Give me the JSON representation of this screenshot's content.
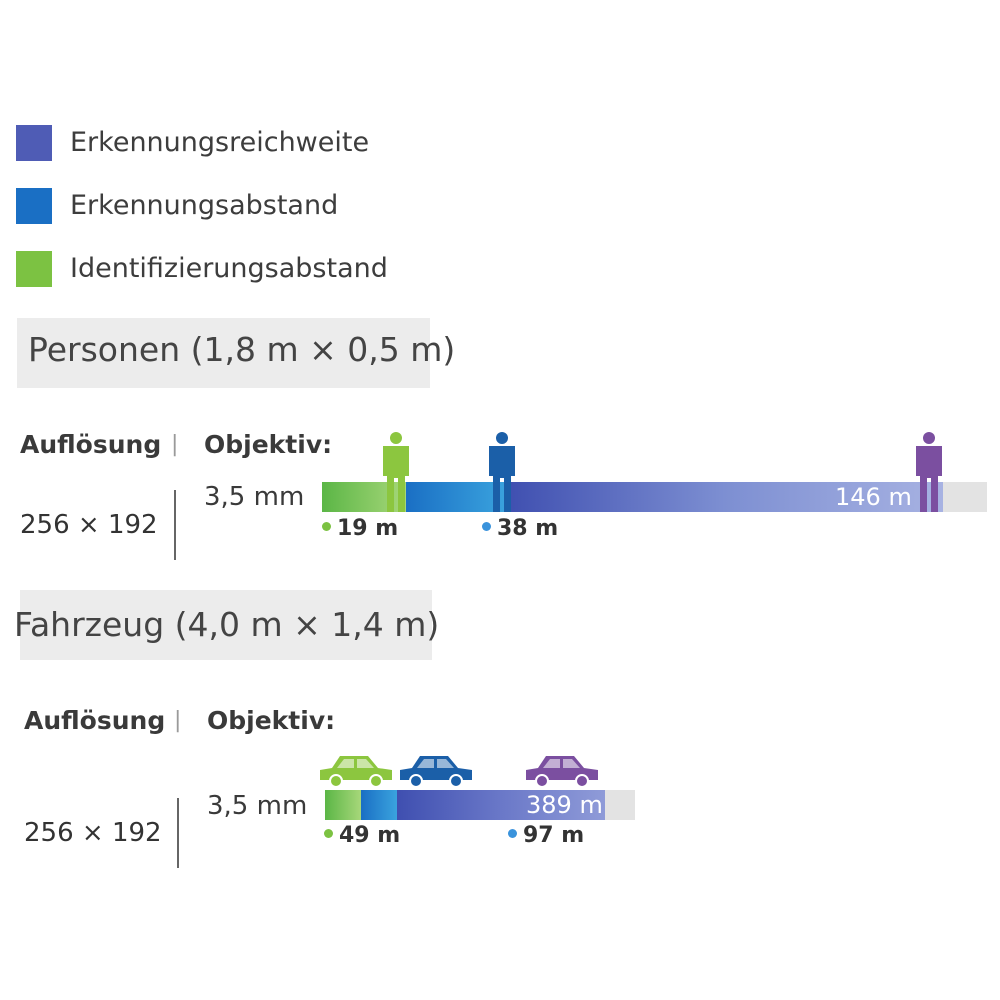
{
  "legend": [
    {
      "label": "Erkennungsreichweite",
      "color": "#4f5cb5"
    },
    {
      "label": "Erkennungsabstand",
      "color": "#1a6fc4"
    },
    {
      "label": "Identifizierungsabstand",
      "color": "#7cc242"
    }
  ],
  "sections": [
    {
      "title": "Personen (1,8 m × 0,5 m)",
      "resolution_header": "Auflösung",
      "separator": "|",
      "lens_header": "Objektiv:",
      "resolution_value": "256 × 192",
      "lens_value": "3,5 mm",
      "range_label": "146 m",
      "identification_label": "19 m",
      "recognition_label": "38 m",
      "icon_type": "person"
    },
    {
      "title": "Fahrzeug (4,0 m × 1,4 m)",
      "resolution_header": "Auflösung",
      "separator": "|",
      "lens_header": "Objektiv:",
      "resolution_value": "256 × 192",
      "lens_value": "3,5 mm",
      "range_label": "389 m",
      "identification_label": "49 m",
      "recognition_label": "97 m",
      "icon_type": "car"
    }
  ],
  "colors": {
    "identification": "#7cc242",
    "recognition": "#1a6fc4",
    "detection": "#4f5cb5",
    "identification_icon": "#8cc63f",
    "recognition_icon": "#1b5fa8",
    "detection_icon": "#7b4fa0"
  }
}
